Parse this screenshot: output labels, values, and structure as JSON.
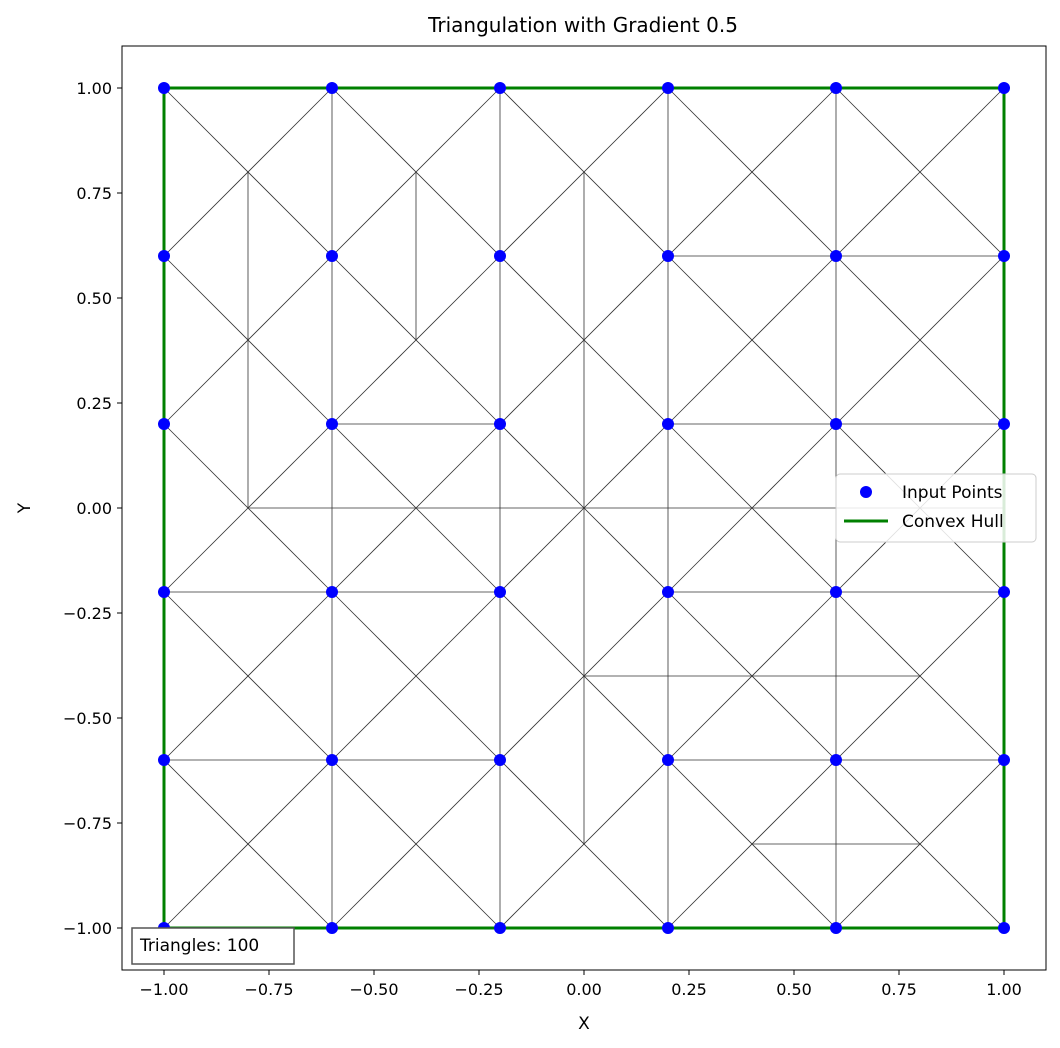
{
  "chart_data": {
    "type": "scatter",
    "title": "Triangulation with Gradient 0.5",
    "xlabel": "X",
    "ylabel": "Y",
    "xlim": [
      -1.1,
      1.1
    ],
    "ylim": [
      -1.1,
      1.1
    ],
    "grid": false,
    "legend_position": "center-right",
    "x_ticks": [
      -1.0,
      -0.75,
      -0.5,
      -0.25,
      0.0,
      0.25,
      0.5,
      0.75,
      1.0
    ],
    "x_tick_labels": [
      "−1.00",
      "−0.75",
      "−0.50",
      "−0.25",
      "0.00",
      "0.25",
      "0.50",
      "0.75",
      "1.00"
    ],
    "y_ticks": [
      -1.0,
      -0.75,
      -0.5,
      -0.25,
      0.0,
      0.25,
      0.5,
      0.75,
      1.0
    ],
    "y_tick_labels": [
      "−1.00",
      "−0.75",
      "−0.50",
      "−0.25",
      "0.00",
      "0.25",
      "0.50",
      "0.75",
      "1.00"
    ],
    "legend": [
      {
        "label": "Input Points",
        "kind": "marker",
        "color": "#0000ff"
      },
      {
        "label": "Convex Hull",
        "kind": "line",
        "color": "#008000"
      }
    ],
    "annotation": "Triangles: 100",
    "point_color": "#0000ff",
    "hull_color": "#008000",
    "edge_color": "#333333",
    "points_x": [
      -1.0,
      -0.6,
      -0.2,
      0.2,
      0.6,
      1.0
    ],
    "points_y": [
      -1.0,
      -0.6,
      -0.2,
      0.2,
      0.6,
      1.0
    ],
    "hull": [
      [
        -1,
        -1
      ],
      [
        1,
        -1
      ],
      [
        1,
        1
      ],
      [
        -1,
        1
      ],
      [
        -1,
        -1
      ]
    ],
    "edges": [
      [
        [
          -1,
          1
        ],
        [
          -0.6,
          0.6
        ]
      ],
      [
        [
          -0.6,
          1
        ],
        [
          -1,
          0.6
        ]
      ],
      [
        [
          -0.6,
          1
        ],
        [
          -0.2,
          0.6
        ]
      ],
      [
        [
          -0.2,
          1
        ],
        [
          -0.6,
          0.6
        ]
      ],
      [
        [
          -0.2,
          1
        ],
        [
          0.2,
          0.6
        ]
      ],
      [
        [
          0.2,
          1
        ],
        [
          -0.2,
          0.6
        ]
      ],
      [
        [
          0.2,
          1
        ],
        [
          0.6,
          0.6
        ]
      ],
      [
        [
          0.6,
          1
        ],
        [
          0.2,
          0.6
        ]
      ],
      [
        [
          0.6,
          1
        ],
        [
          1,
          0.6
        ]
      ],
      [
        [
          1,
          1
        ],
        [
          0.6,
          0.6
        ]
      ],
      [
        [
          -1,
          0.6
        ],
        [
          -0.6,
          0.2
        ]
      ],
      [
        [
          -0.6,
          0.6
        ],
        [
          -1,
          0.2
        ]
      ],
      [
        [
          -0.6,
          0.6
        ],
        [
          -0.2,
          0.2
        ]
      ],
      [
        [
          -0.2,
          0.6
        ],
        [
          -0.6,
          0.2
        ]
      ],
      [
        [
          -0.2,
          0.6
        ],
        [
          0.2,
          0.2
        ]
      ],
      [
        [
          0.2,
          0.6
        ],
        [
          -0.2,
          0.2
        ]
      ],
      [
        [
          0.2,
          0.6
        ],
        [
          0.6,
          0.2
        ]
      ],
      [
        [
          0.6,
          0.6
        ],
        [
          0.2,
          0.2
        ]
      ],
      [
        [
          0.6,
          0.6
        ],
        [
          1,
          0.2
        ]
      ],
      [
        [
          1,
          0.6
        ],
        [
          0.6,
          0.2
        ]
      ],
      [
        [
          -1,
          0.2
        ],
        [
          -0.6,
          -0.2
        ]
      ],
      [
        [
          -0.6,
          0.2
        ],
        [
          -1,
          -0.2
        ]
      ],
      [
        [
          -0.6,
          0.2
        ],
        [
          -0.2,
          -0.2
        ]
      ],
      [
        [
          -0.2,
          0.2
        ],
        [
          -0.6,
          -0.2
        ]
      ],
      [
        [
          -0.2,
          0.2
        ],
        [
          0.2,
          -0.2
        ]
      ],
      [
        [
          0.2,
          0.2
        ],
        [
          -0.2,
          -0.2
        ]
      ],
      [
        [
          0.2,
          0.2
        ],
        [
          0.6,
          -0.2
        ]
      ],
      [
        [
          0.6,
          0.2
        ],
        [
          0.2,
          -0.2
        ]
      ],
      [
        [
          0.6,
          0.2
        ],
        [
          1,
          -0.2
        ]
      ],
      [
        [
          1,
          0.2
        ],
        [
          0.6,
          -0.2
        ]
      ],
      [
        [
          -1,
          -0.2
        ],
        [
          -0.6,
          -0.6
        ]
      ],
      [
        [
          -0.6,
          -0.2
        ],
        [
          -1,
          -0.6
        ]
      ],
      [
        [
          -0.6,
          -0.2
        ],
        [
          -0.2,
          -0.6
        ]
      ],
      [
        [
          -0.2,
          -0.2
        ],
        [
          -0.6,
          -0.6
        ]
      ],
      [
        [
          -0.2,
          -0.2
        ],
        [
          0.2,
          -0.6
        ]
      ],
      [
        [
          0.2,
          -0.2
        ],
        [
          -0.2,
          -0.6
        ]
      ],
      [
        [
          0.2,
          -0.2
        ],
        [
          0.6,
          -0.6
        ]
      ],
      [
        [
          0.6,
          -0.2
        ],
        [
          0.2,
          -0.6
        ]
      ],
      [
        [
          0.6,
          -0.2
        ],
        [
          1,
          -0.6
        ]
      ],
      [
        [
          1,
          -0.2
        ],
        [
          0.6,
          -0.6
        ]
      ],
      [
        [
          -1,
          -0.6
        ],
        [
          -0.6,
          -1
        ]
      ],
      [
        [
          -0.6,
          -0.6
        ],
        [
          -1,
          -1
        ]
      ],
      [
        [
          -0.6,
          -0.6
        ],
        [
          -0.2,
          -1
        ]
      ],
      [
        [
          -0.2,
          -0.6
        ],
        [
          -0.6,
          -1
        ]
      ],
      [
        [
          -0.2,
          -0.6
        ],
        [
          0.2,
          -1
        ]
      ],
      [
        [
          0.2,
          -0.6
        ],
        [
          -0.2,
          -1
        ]
      ],
      [
        [
          0.2,
          -0.6
        ],
        [
          0.6,
          -1
        ]
      ],
      [
        [
          0.6,
          -0.6
        ],
        [
          0.2,
          -1
        ]
      ],
      [
        [
          0.6,
          -0.6
        ],
        [
          1,
          -1
        ]
      ],
      [
        [
          1,
          -0.6
        ],
        [
          0.6,
          -1
        ]
      ],
      [
        [
          -0.6,
          1
        ],
        [
          -0.6,
          -1
        ]
      ],
      [
        [
          -0.2,
          1
        ],
        [
          -0.2,
          -1
        ]
      ],
      [
        [
          0.2,
          1
        ],
        [
          0.2,
          -1
        ]
      ],
      [
        [
          0.6,
          1
        ],
        [
          0.6,
          -1
        ]
      ],
      [
        [
          -0.8,
          0.8
        ],
        [
          -0.8,
          0.0
        ]
      ],
      [
        [
          -0.4,
          0.8
        ],
        [
          -0.4,
          0.4
        ]
      ],
      [
        [
          0.0,
          0.8
        ],
        [
          0.0,
          -0.8
        ]
      ],
      [
        [
          0.2,
          0.6
        ],
        [
          1,
          0.6
        ]
      ],
      [
        [
          -0.6,
          0.2
        ],
        [
          -0.2,
          0.2
        ]
      ],
      [
        [
          0.2,
          0.2
        ],
        [
          1,
          0.2
        ]
      ],
      [
        [
          -0.8,
          0.0
        ],
        [
          1,
          0.0
        ]
      ],
      [
        [
          -1,
          -0.2
        ],
        [
          -0.2,
          -0.2
        ]
      ],
      [
        [
          0.2,
          -0.2
        ],
        [
          1,
          -0.2
        ]
      ],
      [
        [
          0.0,
          -0.4
        ],
        [
          0.8,
          -0.4
        ]
      ],
      [
        [
          -1,
          -0.6
        ],
        [
          -0.2,
          -0.6
        ]
      ],
      [
        [
          0.2,
          -0.6
        ],
        [
          1,
          -0.6
        ]
      ],
      [
        [
          0.4,
          -0.8
        ],
        [
          0.8,
          -0.8
        ]
      ]
    ]
  }
}
